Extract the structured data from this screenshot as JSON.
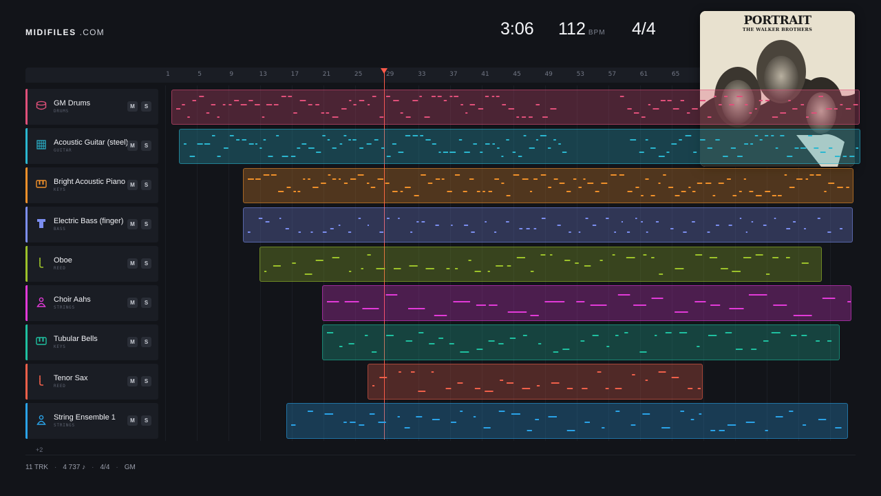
{
  "brand": {
    "bold": "MIDIFILES",
    "rest": ".COM"
  },
  "transport": {
    "time": "3:06",
    "bpm": "112",
    "bpm_unit": "BPM",
    "time_signature": "4/4"
  },
  "ruler": {
    "ticks": [
      "1",
      "5",
      "9",
      "13",
      "17",
      "21",
      "25",
      "29",
      "33",
      "37",
      "41",
      "45",
      "49",
      "53",
      "57",
      "61",
      "65"
    ]
  },
  "tracks": [
    {
      "name": "GM Drums",
      "category": "DRUMS",
      "color": "#e0507a",
      "icon": "drum-icon",
      "mute": "M",
      "solo": "S"
    },
    {
      "name": "Acoustic Guitar (steel)",
      "category": "GUITAR",
      "color": "#2bb7d0",
      "icon": "guitar-icon",
      "mute": "M",
      "solo": "S"
    },
    {
      "name": "Bright Acoustic Piano",
      "category": "KEYS",
      "color": "#f0902a",
      "icon": "piano-icon",
      "mute": "M",
      "solo": "S"
    },
    {
      "name": "Electric Bass (finger)",
      "category": "BASS",
      "color": "#7c8ef0",
      "icon": "bass-icon",
      "mute": "M",
      "solo": "S"
    },
    {
      "name": "Oboe",
      "category": "REED",
      "color": "#9cc22a",
      "icon": "oboe-icon",
      "mute": "M",
      "solo": "S"
    },
    {
      "name": "Choir Aahs",
      "category": "STRINGS",
      "color": "#e23ad8",
      "icon": "choir-icon",
      "mute": "M",
      "solo": "S"
    },
    {
      "name": "Tubular Bells",
      "category": "KEYS",
      "color": "#1fc0a0",
      "icon": "bells-icon",
      "mute": "M",
      "solo": "S"
    },
    {
      "name": "Tenor Sax",
      "category": "REED",
      "color": "#f0604a",
      "icon": "sax-icon",
      "mute": "M",
      "solo": "S"
    },
    {
      "name": "String Ensemble 1",
      "category": "STRINGS",
      "color": "#2aa3e8",
      "icon": "strings-icon",
      "mute": "M",
      "solo": "S"
    }
  ],
  "more_tracks": "+2",
  "footer": {
    "tracks": "11 TRK",
    "notes": "4 737 ♪",
    "signature": "4/4",
    "standard": "GM"
  },
  "album": {
    "title": "PORTRAIT",
    "artist": "THE WALKER BROTHERS"
  }
}
